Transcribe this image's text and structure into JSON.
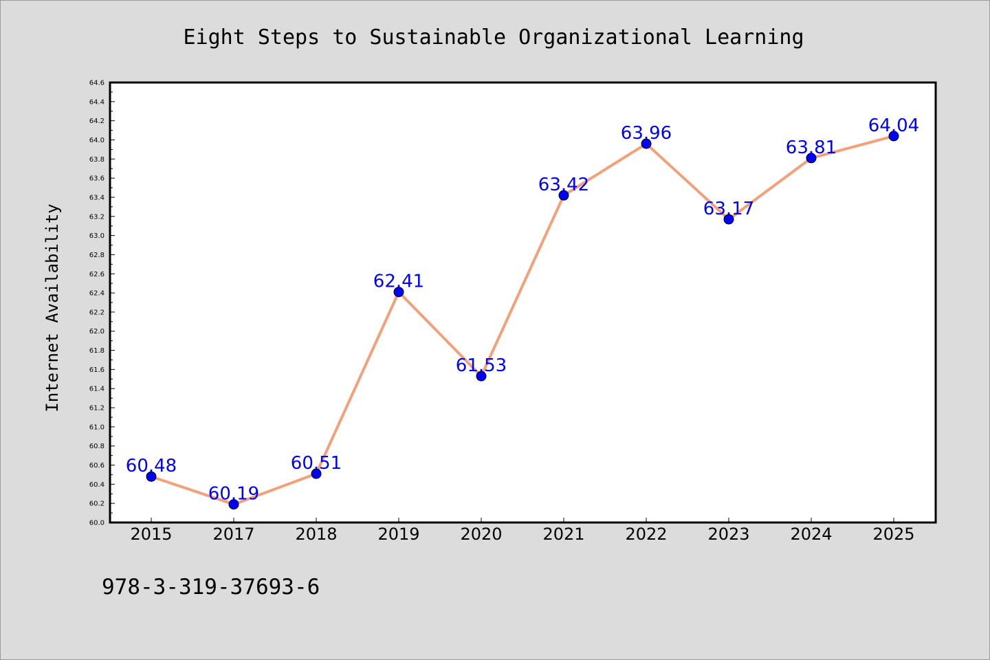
{
  "chart_data": {
    "type": "line",
    "title": "Eight Steps to Sustainable Organizational Learning",
    "xlabel": "",
    "ylabel": "Internet Availability",
    "categories": [
      "2015",
      "2017",
      "2018",
      "2019",
      "2020",
      "2021",
      "2022",
      "2023",
      "2024",
      "2025"
    ],
    "series": [
      {
        "values": [
          60.48,
          60.19,
          60.51,
          62.41,
          61.53,
          63.42,
          63.96,
          63.17,
          63.81,
          64.04
        ],
        "labels": [
          "60.48",
          "60.19",
          "60.51",
          "62.41",
          "61.53",
          "63.42",
          "63.96",
          "63.17",
          "63.81",
          "64.04"
        ],
        "line_color": "#f4a07a",
        "marker_color": "#0000ff"
      }
    ],
    "ylim": [
      60.0,
      64.6
    ],
    "yticks": [
      "60.0",
      "60.2",
      "60.4",
      "60.6",
      "60.8",
      "61.0",
      "61.2",
      "61.4",
      "61.6",
      "61.8",
      "62.0",
      "62.2",
      "62.4",
      "62.6",
      "62.8",
      "63.0",
      "63.2",
      "63.4",
      "63.6",
      "63.8",
      "64.0",
      "64.2",
      "64.4",
      "64.6"
    ],
    "grid": false,
    "data_label_color": "#0000ff"
  },
  "footnote": "978-3-319-37693-6"
}
